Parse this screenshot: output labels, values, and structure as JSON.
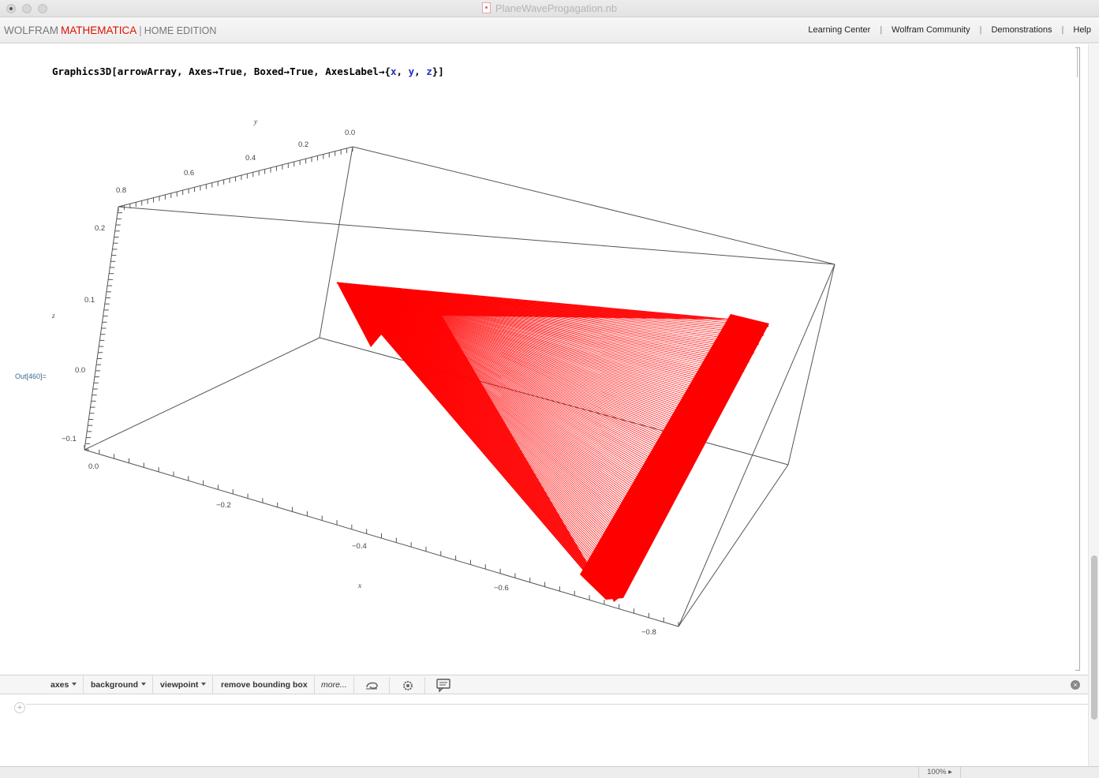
{
  "window": {
    "title": "PlaneWaveProgagation.nb"
  },
  "brand": {
    "wolfram": "WOLFRAM",
    "mathematica": "MATHEMATICA",
    "separator": "|",
    "edition": "HOME EDITION"
  },
  "nav": {
    "items": [
      "Learning Center",
      "Wolfram Community",
      "Demonstrations",
      "Help"
    ],
    "separator": "|"
  },
  "input": {
    "prefix": "Graphics3D[arrowArray, Axes",
    "arrow": "→",
    "p2": "True, Boxed",
    "p3": "True, AxesLabel",
    "lbrace": "{",
    "x": "x",
    "comma": ", ",
    "y": "y",
    "z": "z",
    "rbrace": "}]"
  },
  "output_label": "Out[460]=",
  "chart_data": {
    "type": "3d-arrows",
    "arrow_color": "#ff0000",
    "axes": {
      "x": {
        "label": "x",
        "ticks": [
          "0.0",
          "−0.2",
          "−0.4",
          "−0.6",
          "−0.8"
        ]
      },
      "y": {
        "label": "y",
        "ticks": [
          "0.0",
          "0.2",
          "0.4",
          "0.6",
          "0.8"
        ]
      },
      "z": {
        "label": "z",
        "ticks": [
          "−0.1",
          "0.0",
          "0.1",
          "0.2"
        ]
      }
    },
    "boxed": true
  },
  "suggestions": {
    "axes": "axes",
    "background": "background",
    "viewpoint": "viewpoint",
    "remove_box": "remove bounding box",
    "more": "more..."
  },
  "status": {
    "zoom": "100%"
  },
  "colors": {
    "accent": "#dd1100",
    "symbol": "#1c2ec4"
  }
}
